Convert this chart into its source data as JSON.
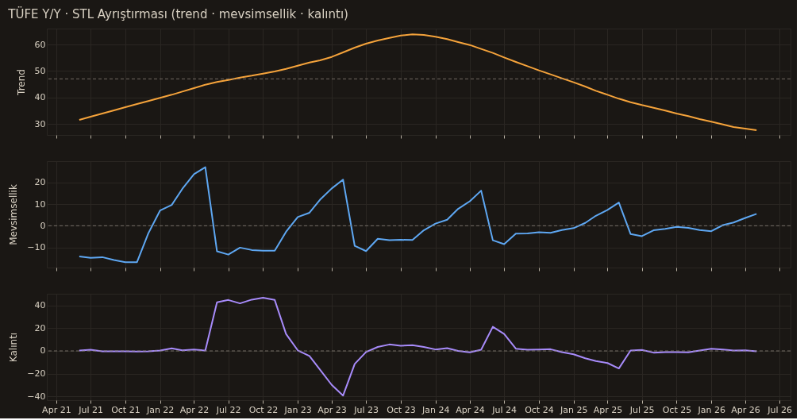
{
  "chart_data": [
    {
      "type": "line",
      "title": "TÜFE Y/Y · STL Ayrıştırması (trend · mevsimsellik · kalıntı)",
      "ylabel": "Trend",
      "x": [
        "2021-06",
        "2021-07",
        "2021-08",
        "2021-09",
        "2021-10",
        "2021-11",
        "2021-12",
        "2022-01",
        "2022-02",
        "2022-03",
        "2022-04",
        "2022-05",
        "2022-06",
        "2022-07",
        "2022-08",
        "2022-09",
        "2022-10",
        "2022-11",
        "2022-12",
        "2023-01",
        "2023-02",
        "2023-03",
        "2023-04",
        "2023-05",
        "2023-06",
        "2023-07",
        "2023-08",
        "2023-09",
        "2023-10",
        "2023-11",
        "2023-12",
        "2024-01",
        "2024-02",
        "2024-03",
        "2024-04",
        "2024-05",
        "2024-06",
        "2024-07",
        "2024-08",
        "2024-09",
        "2024-10",
        "2024-11",
        "2024-12",
        "2025-01",
        "2025-02",
        "2025-03",
        "2025-04",
        "2025-05",
        "2025-06",
        "2025-07",
        "2025-08",
        "2025-09",
        "2025-10",
        "2025-11",
        "2025-12",
        "2026-01",
        "2026-02",
        "2026-03",
        "2026-04",
        "2026-05"
      ],
      "series": [
        {
          "color": "#f5a33b",
          "values": [
            31.5,
            32.7,
            33.9,
            35.1,
            36.3,
            37.5,
            38.6,
            39.8,
            41,
            42.2,
            43.5,
            44.8,
            45.8,
            46.6,
            47.5,
            48.2,
            49,
            49.8,
            50.8,
            52,
            53.2,
            54,
            55.3,
            57,
            58.8,
            60.3,
            61.5,
            62.5,
            63.4,
            63.8,
            63.6,
            62.9,
            62,
            60.9,
            59.8,
            58.3,
            56.8,
            55.1,
            53.4,
            51.8,
            50.2,
            48.7,
            47.2,
            45.7,
            44.1,
            42.5,
            41,
            39.5,
            38.2,
            37.1,
            36.1,
            35,
            33.9,
            32.9,
            31.8,
            30.8,
            29.8,
            28.8,
            28.2,
            27.6
          ]
        }
      ],
      "xlim": [
        "2021-03-07",
        "2026-07-30"
      ],
      "ylim": [
        25.8,
        66
      ],
      "yticks": [
        30,
        40,
        50,
        60
      ],
      "xticks": [
        {
          "value": "2021-04-01",
          "label": null
        },
        {
          "value": "2021-07-01",
          "label": null
        },
        {
          "value": "2021-10-01",
          "label": null
        },
        {
          "value": "2022-01-01",
          "label": null
        },
        {
          "value": "2022-04-01",
          "label": null
        },
        {
          "value": "2022-07-01",
          "label": null
        },
        {
          "value": "2022-10-01",
          "label": null
        },
        {
          "value": "2023-01-01",
          "label": null
        },
        {
          "value": "2023-04-01",
          "label": null
        },
        {
          "value": "2023-07-01",
          "label": null
        },
        {
          "value": "2023-10-01",
          "label": null
        },
        {
          "value": "2024-01-01",
          "label": null
        },
        {
          "value": "2024-04-01",
          "label": null
        },
        {
          "value": "2024-07-01",
          "label": null
        },
        {
          "value": "2024-10-01",
          "label": null
        },
        {
          "value": "2025-01-01",
          "label": null
        },
        {
          "value": "2025-04-01",
          "label": null
        },
        {
          "value": "2025-07-01",
          "label": null
        },
        {
          "value": "2025-10-01",
          "label": null
        },
        {
          "value": "2026-01-01",
          "label": null
        },
        {
          "value": "2026-04-01",
          "label": null
        },
        {
          "value": "2026-07-01",
          "label": null
        }
      ],
      "tick_labels": "y",
      "grid": true,
      "ref_lines": [
        {
          "axis": "y",
          "value": 47,
          "color": "#8a8278",
          "line_style": "dashed"
        }
      ]
    },
    {
      "type": "line",
      "ylabel": "Mevsimsellik",
      "x": [
        "2021-06",
        "2021-07",
        "2021-08",
        "2021-09",
        "2021-10",
        "2021-11",
        "2021-12",
        "2022-01",
        "2022-02",
        "2022-03",
        "2022-04",
        "2022-05",
        "2022-06",
        "2022-07",
        "2022-08",
        "2022-09",
        "2022-10",
        "2022-11",
        "2022-12",
        "2023-01",
        "2023-02",
        "2023-03",
        "2023-04",
        "2023-05",
        "2023-06",
        "2023-07",
        "2023-08",
        "2023-09",
        "2023-10",
        "2023-11",
        "2023-12",
        "2024-01",
        "2024-02",
        "2024-03",
        "2024-04",
        "2024-05",
        "2024-06",
        "2024-07",
        "2024-08",
        "2024-09",
        "2024-10",
        "2024-11",
        "2024-12",
        "2025-01",
        "2025-02",
        "2025-03",
        "2025-04",
        "2025-05",
        "2025-06",
        "2025-07",
        "2025-08",
        "2025-09",
        "2025-10",
        "2025-11",
        "2025-12",
        "2026-01",
        "2026-02",
        "2026-03",
        "2026-04",
        "2026-05"
      ],
      "series": [
        {
          "color": "#5ea7f2",
          "values": [
            -14.2,
            -14.8,
            -14.5,
            -15.8,
            -16.8,
            -16.8,
            -3.5,
            7,
            9.6,
            17,
            23.8,
            27,
            -11.8,
            -13.3,
            -10.1,
            -11.2,
            -11.5,
            -11.5,
            -2.8,
            4,
            6,
            12,
            17.2,
            21.3,
            -9.3,
            -11.7,
            -6,
            -6.7,
            -6.5,
            -6.6,
            -2.1,
            1,
            2.8,
            7.8,
            11.3,
            16.2,
            -6.7,
            -8.5,
            -3.6,
            -3.5,
            -3,
            -3.3,
            -2,
            -1.1,
            1.3,
            4.6,
            7.3,
            10.7,
            -3.8,
            -4.8,
            -2.1,
            -1.4,
            -0.5,
            -1,
            -2,
            -2.5,
            0.3,
            1.5,
            3.6,
            5.5
          ]
        }
      ],
      "xlim": [
        "2021-03-07",
        "2026-07-30"
      ],
      "ylim": [
        -19.3,
        29.8
      ],
      "yticks": [
        -10,
        0,
        10,
        20
      ],
      "xticks": [
        {
          "value": "2021-04-01",
          "label": null
        },
        {
          "value": "2021-07-01",
          "label": null
        },
        {
          "value": "2021-10-01",
          "label": null
        },
        {
          "value": "2022-01-01",
          "label": null
        },
        {
          "value": "2022-04-01",
          "label": null
        },
        {
          "value": "2022-07-01",
          "label": null
        },
        {
          "value": "2022-10-01",
          "label": null
        },
        {
          "value": "2023-01-01",
          "label": null
        },
        {
          "value": "2023-04-01",
          "label": null
        },
        {
          "value": "2023-07-01",
          "label": null
        },
        {
          "value": "2023-10-01",
          "label": null
        },
        {
          "value": "2024-01-01",
          "label": null
        },
        {
          "value": "2024-04-01",
          "label": null
        },
        {
          "value": "2024-07-01",
          "label": null
        },
        {
          "value": "2024-10-01",
          "label": null
        },
        {
          "value": "2025-01-01",
          "label": null
        },
        {
          "value": "2025-04-01",
          "label": null
        },
        {
          "value": "2025-07-01",
          "label": null
        },
        {
          "value": "2025-10-01",
          "label": null
        },
        {
          "value": "2026-01-01",
          "label": null
        },
        {
          "value": "2026-04-01",
          "label": null
        },
        {
          "value": "2026-07-01",
          "label": null
        }
      ],
      "tick_labels": "y",
      "grid": true,
      "ref_lines": [
        {
          "axis": "y",
          "value": 0,
          "color": "#8a8278",
          "line_style": "dashed"
        }
      ]
    },
    {
      "type": "line",
      "ylabel": "Kalıntı",
      "x": [
        "2021-06",
        "2021-07",
        "2021-08",
        "2021-09",
        "2021-10",
        "2021-11",
        "2021-12",
        "2022-01",
        "2022-02",
        "2022-03",
        "2022-04",
        "2022-05",
        "2022-06",
        "2022-07",
        "2022-08",
        "2022-09",
        "2022-10",
        "2022-11",
        "2022-12",
        "2023-01",
        "2023-02",
        "2023-03",
        "2023-04",
        "2023-05",
        "2023-06",
        "2023-07",
        "2023-08",
        "2023-09",
        "2023-10",
        "2023-11",
        "2023-12",
        "2024-01",
        "2024-02",
        "2024-03",
        "2024-04",
        "2024-05",
        "2024-06",
        "2024-07",
        "2024-08",
        "2024-09",
        "2024-10",
        "2024-11",
        "2024-12",
        "2025-01",
        "2025-02",
        "2025-03",
        "2025-04",
        "2025-05",
        "2025-06",
        "2025-07",
        "2025-08",
        "2025-09",
        "2025-10",
        "2025-11",
        "2025-12",
        "2026-01",
        "2026-02",
        "2026-03",
        "2026-04",
        "2026-05"
      ],
      "series": [
        {
          "color": "#a78bfa",
          "values": [
            0.3,
            1,
            -0.3,
            -0.3,
            -0.4,
            -0.5,
            -0.3,
            0.3,
            2.3,
            0.5,
            1.2,
            0.3,
            43,
            45,
            42,
            45.3,
            47,
            45,
            15,
            0.5,
            -4.5,
            -16.5,
            -30,
            -39.5,
            -11.5,
            -1,
            3.5,
            5.7,
            4.6,
            5,
            3.5,
            1.3,
            2.5,
            0,
            -1.2,
            1,
            21.3,
            15,
            2,
            1,
            1.2,
            1.5,
            -1,
            -3,
            -6.5,
            -9,
            -10.7,
            -15.5,
            0.3,
            0.8,
            -1.5,
            -1,
            -1,
            -1.2,
            0.4,
            2,
            1.2,
            0.4,
            0.5,
            -0.3
          ]
        }
      ],
      "xlim": [
        "2021-03-07",
        "2026-07-30"
      ],
      "ylim": [
        -43.5,
        50.5
      ],
      "yticks": [
        -40,
        -20,
        0,
        20,
        40
      ],
      "xticks": [
        {
          "value": "2021-04-01",
          "label": "Apr 21"
        },
        {
          "value": "2021-07-01",
          "label": "Jul 21"
        },
        {
          "value": "2021-10-01",
          "label": "Oct 21"
        },
        {
          "value": "2022-01-01",
          "label": "Jan 22"
        },
        {
          "value": "2022-04-01",
          "label": "Apr 22"
        },
        {
          "value": "2022-07-01",
          "label": "Jul 22"
        },
        {
          "value": "2022-10-01",
          "label": "Oct 22"
        },
        {
          "value": "2023-01-01",
          "label": "Jan 23"
        },
        {
          "value": "2023-04-01",
          "label": "Apr 23"
        },
        {
          "value": "2023-07-01",
          "label": "Jul 23"
        },
        {
          "value": "2023-10-01",
          "label": "Oct 23"
        },
        {
          "value": "2024-01-01",
          "label": "Jan 24"
        },
        {
          "value": "2024-04-01",
          "label": "Apr 24"
        },
        {
          "value": "2024-07-01",
          "label": "Jul 24"
        },
        {
          "value": "2024-10-01",
          "label": "Oct 24"
        },
        {
          "value": "2025-01-01",
          "label": "Jan 25"
        },
        {
          "value": "2025-04-01",
          "label": "Apr 25"
        },
        {
          "value": "2025-07-01",
          "label": "Jul 25"
        },
        {
          "value": "2025-10-01",
          "label": "Oct 25"
        },
        {
          "value": "2026-01-01",
          "label": "Jan 26"
        },
        {
          "value": "2026-04-01",
          "label": "Apr 26"
        },
        {
          "value": "2026-07-01",
          "label": "Jul 26"
        }
      ],
      "grid": true,
      "ref_lines": [
        {
          "axis": "y",
          "value": 0,
          "color": "#8a8278",
          "line_style": "dashed"
        }
      ]
    }
  ]
}
